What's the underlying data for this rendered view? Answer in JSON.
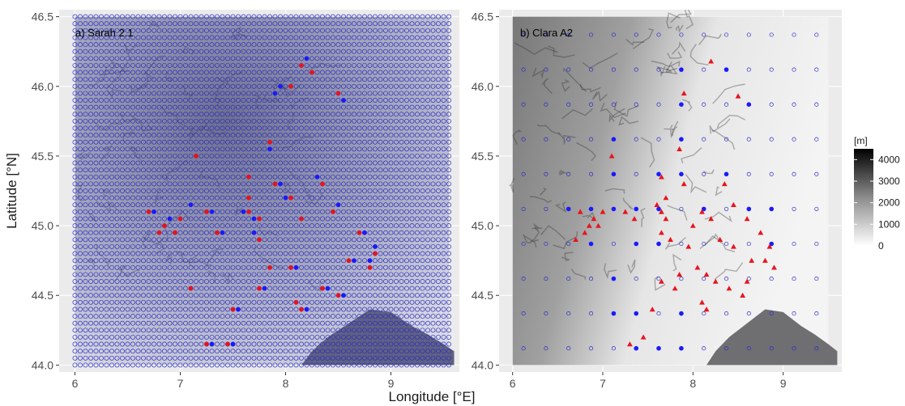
{
  "chart_data": [
    {
      "type": "scatter",
      "title": "a) Sarah 2.1",
      "xlabel": "Longitude [°E]",
      "ylabel": "Latitude [°N]",
      "xlim": [
        5.85,
        9.65
      ],
      "ylim": [
        43.95,
        46.55
      ],
      "xticks": [
        6,
        7,
        8,
        9
      ],
      "yticks": [
        44.0,
        44.5,
        45.0,
        45.5,
        46.0,
        46.5
      ],
      "background": "elevation shading (blue-grey)",
      "grid": true,
      "series": [
        {
          "marker": "open blue circle",
          "color": "#2b2bc8",
          "grid_spacing_deg": 0.05,
          "extent": {
            "lon": [
              6.0,
              9.55
            ],
            "lat": [
              44.0,
              46.5
            ]
          }
        },
        {
          "marker": "filled blue circle",
          "color": "#1a1aff",
          "points": [
            [
              8.2,
              46.2
            ],
            [
              7.95,
              46.0
            ],
            [
              7.9,
              45.95
            ],
            [
              8.55,
              45.9
            ],
            [
              7.85,
              45.55
            ],
            [
              8.3,
              45.35
            ],
            [
              7.95,
              45.3
            ],
            [
              8.0,
              45.2
            ],
            [
              8.5,
              45.15
            ],
            [
              7.1,
              45.15
            ],
            [
              7.3,
              45.1
            ],
            [
              7.6,
              45.1
            ],
            [
              7.7,
              45.05
            ],
            [
              6.75,
              45.1
            ],
            [
              6.9,
              45.05
            ],
            [
              7.4,
              44.95
            ],
            [
              7.7,
              44.95
            ],
            [
              8.75,
              44.95
            ],
            [
              8.85,
              44.85
            ],
            [
              8.8,
              44.75
            ],
            [
              8.65,
              44.75
            ],
            [
              8.05,
              44.7
            ],
            [
              8.1,
              44.7
            ],
            [
              8.4,
              44.55
            ],
            [
              7.8,
              44.55
            ],
            [
              8.55,
              44.5
            ],
            [
              8.1,
              44.45
            ],
            [
              8.2,
              44.4
            ],
            [
              7.1,
              44.55
            ],
            [
              7.55,
              44.4
            ],
            [
              7.3,
              44.15
            ],
            [
              7.5,
              44.15
            ]
          ]
        },
        {
          "marker": "filled red circle",
          "color": "#e8141e",
          "points": [
            [
              8.15,
              46.15
            ],
            [
              8.25,
              46.1
            ],
            [
              8.5,
              45.95
            ],
            [
              8.05,
              46.0
            ],
            [
              7.85,
              45.6
            ],
            [
              7.15,
              45.5
            ],
            [
              7.65,
              45.35
            ],
            [
              8.35,
              45.3
            ],
            [
              7.9,
              45.3
            ],
            [
              7.65,
              45.2
            ],
            [
              8.05,
              45.2
            ],
            [
              6.7,
              45.1
            ],
            [
              6.85,
              45.0
            ],
            [
              7.0,
              45.05
            ],
            [
              7.25,
              45.1
            ],
            [
              7.65,
              45.1
            ],
            [
              7.75,
              45.05
            ],
            [
              7.35,
              44.95
            ],
            [
              7.75,
              44.9
            ],
            [
              8.7,
              44.95
            ],
            [
              8.85,
              44.8
            ],
            [
              8.8,
              44.7
            ],
            [
              8.6,
              44.75
            ],
            [
              8.05,
              44.7
            ],
            [
              7.85,
              44.7
            ],
            [
              8.35,
              44.55
            ],
            [
              7.75,
              44.55
            ],
            [
              8.5,
              44.5
            ],
            [
              8.1,
              44.45
            ],
            [
              8.15,
              44.4
            ],
            [
              7.1,
              44.55
            ],
            [
              7.5,
              44.4
            ],
            [
              7.25,
              44.15
            ],
            [
              7.45,
              44.15
            ],
            [
              6.8,
              44.95
            ],
            [
              6.95,
              44.95
            ],
            [
              8.15,
              45.05
            ],
            [
              8.45,
              45.1
            ]
          ]
        }
      ]
    },
    {
      "type": "scatter",
      "title": "b) Clara A2",
      "xlim": [
        5.85,
        9.65
      ],
      "ylim": [
        43.95,
        46.55
      ],
      "xticks": [
        6,
        7,
        8,
        9
      ],
      "yticks": [
        44.0,
        44.5,
        45.0,
        45.5,
        46.0,
        46.5
      ],
      "background": "elevation shading (grey scale)",
      "grid": true,
      "series": [
        {
          "marker": "open blue circle",
          "color": "#2b2bc8",
          "grid_spacing_deg": 0.25,
          "extent": {
            "lon": [
              6.12,
              9.37
            ],
            "lat": [
              44.12,
              46.37
            ]
          }
        },
        {
          "marker": "filled blue circle",
          "color": "#1a1aff",
          "points": [
            [
              8.37,
              46.12
            ],
            [
              7.87,
              46.12
            ],
            [
              8.62,
              45.87
            ],
            [
              7.87,
              45.87
            ],
            [
              7.87,
              45.62
            ],
            [
              7.12,
              45.62
            ],
            [
              7.62,
              45.37
            ],
            [
              7.87,
              45.37
            ],
            [
              8.37,
              45.37
            ],
            [
              7.12,
              45.37
            ],
            [
              6.62,
              45.12
            ],
            [
              6.87,
              45.12
            ],
            [
              7.12,
              45.12
            ],
            [
              7.37,
              45.12
            ],
            [
              7.62,
              45.12
            ],
            [
              8.12,
              45.12
            ],
            [
              8.62,
              45.12
            ],
            [
              8.87,
              45.12
            ],
            [
              6.87,
              44.87
            ],
            [
              7.37,
              44.87
            ],
            [
              7.62,
              44.87
            ],
            [
              8.87,
              44.87
            ],
            [
              7.12,
              44.62
            ],
            [
              7.12,
              44.37
            ],
            [
              7.37,
              44.12
            ],
            [
              7.62,
              44.12
            ],
            [
              7.87,
              44.12
            ],
            [
              7.37,
              44.37
            ],
            [
              7.87,
              44.37
            ]
          ]
        },
        {
          "marker": "filled red triangle",
          "color": "#e8141e",
          "points": [
            [
              8.2,
              46.18
            ],
            [
              8.5,
              45.93
            ],
            [
              7.9,
              45.95
            ],
            [
              7.85,
              45.55
            ],
            [
              7.1,
              45.5
            ],
            [
              7.65,
              45.35
            ],
            [
              8.35,
              45.3
            ],
            [
              7.9,
              45.3
            ],
            [
              7.7,
              45.2
            ],
            [
              6.75,
              45.1
            ],
            [
              6.85,
              45.0
            ],
            [
              6.9,
              45.05
            ],
            [
              6.95,
              45.0
            ],
            [
              6.8,
              44.95
            ],
            [
              6.7,
              44.9
            ],
            [
              7.0,
              45.1
            ],
            [
              7.25,
              45.1
            ],
            [
              7.35,
              45.05
            ],
            [
              7.6,
              45.15
            ],
            [
              7.65,
              45.1
            ],
            [
              7.7,
              45.05
            ],
            [
              7.65,
              44.95
            ],
            [
              7.75,
              44.9
            ],
            [
              8.0,
              45.0
            ],
            [
              8.1,
              45.1
            ],
            [
              8.2,
              45.05
            ],
            [
              8.45,
              45.15
            ],
            [
              8.6,
              45.05
            ],
            [
              8.75,
              44.95
            ],
            [
              8.85,
              44.85
            ],
            [
              8.8,
              44.75
            ],
            [
              8.65,
              44.75
            ],
            [
              8.9,
              44.7
            ],
            [
              8.05,
              44.7
            ],
            [
              8.15,
              44.65
            ],
            [
              7.85,
              44.65
            ],
            [
              7.65,
              44.6
            ],
            [
              8.25,
              44.6
            ],
            [
              8.4,
              44.55
            ],
            [
              8.55,
              44.5
            ],
            [
              7.8,
              44.55
            ],
            [
              8.1,
              44.45
            ],
            [
              8.15,
              44.4
            ],
            [
              7.55,
              44.4
            ],
            [
              7.3,
              44.15
            ],
            [
              7.45,
              44.2
            ],
            [
              8.45,
              44.85
            ],
            [
              8.3,
              44.9
            ],
            [
              7.95,
              44.85
            ],
            [
              8.6,
              44.6
            ]
          ]
        }
      ]
    }
  ],
  "legend": {
    "title": "[m]",
    "ticks": [
      0,
      1000,
      2000,
      3000,
      4000
    ],
    "range": [
      0,
      4500
    ],
    "colors": [
      "#ffffff",
      "#000000"
    ]
  },
  "colors": {
    "panel_bg": "#ebebeb",
    "gridline": "#ffffff",
    "sea": "#6f6f72"
  }
}
